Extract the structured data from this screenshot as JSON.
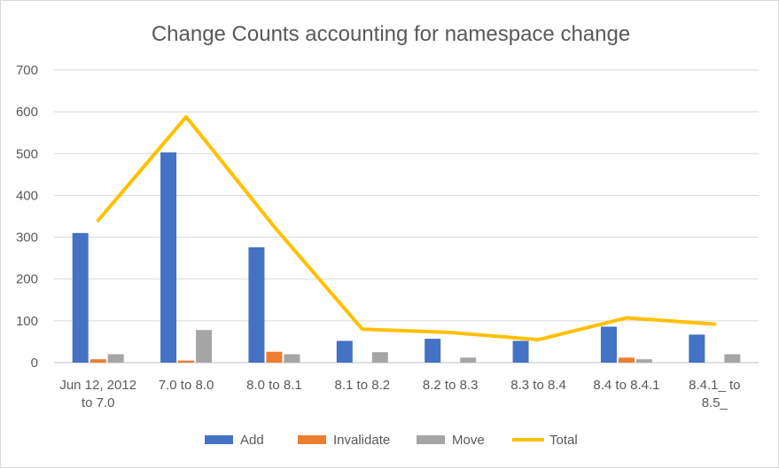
{
  "chart_data": {
    "type": "bar",
    "title": "Change Counts accounting for namespace change",
    "categories": [
      [
        "Jun 12, 2012",
        "to 7.0"
      ],
      [
        "7.0 to 8.0"
      ],
      [
        "8.0 to 8.1"
      ],
      [
        "8.1 to 8.2"
      ],
      [
        "8.2 to 8.3"
      ],
      [
        "8.3 to 8.4"
      ],
      [
        "8.4 to 8.4.1"
      ],
      [
        "8.4.1_ to",
        "8.5_"
      ]
    ],
    "series": [
      {
        "name": "Add",
        "type": "bar",
        "color": "#4472c4",
        "values": [
          310,
          503,
          276,
          52,
          57,
          52,
          86,
          67
        ]
      },
      {
        "name": "Invalidate",
        "type": "bar",
        "color": "#ed7d31",
        "values": [
          8,
          5,
          26,
          0,
          0,
          0,
          12,
          0
        ]
      },
      {
        "name": "Move",
        "type": "bar",
        "color": "#a5a5a5",
        "values": [
          20,
          78,
          20,
          25,
          12,
          0,
          8,
          20
        ]
      },
      {
        "name": "Total",
        "type": "line",
        "color": "#ffc000",
        "values": [
          340,
          588,
          325,
          80,
          72,
          55,
          107,
          92
        ]
      }
    ],
    "y_ticks": [
      "0",
      "100",
      "200",
      "300",
      "400",
      "500",
      "600",
      "700"
    ],
    "ylim": [
      0,
      700
    ],
    "grid": true,
    "legend_position": "bottom"
  }
}
